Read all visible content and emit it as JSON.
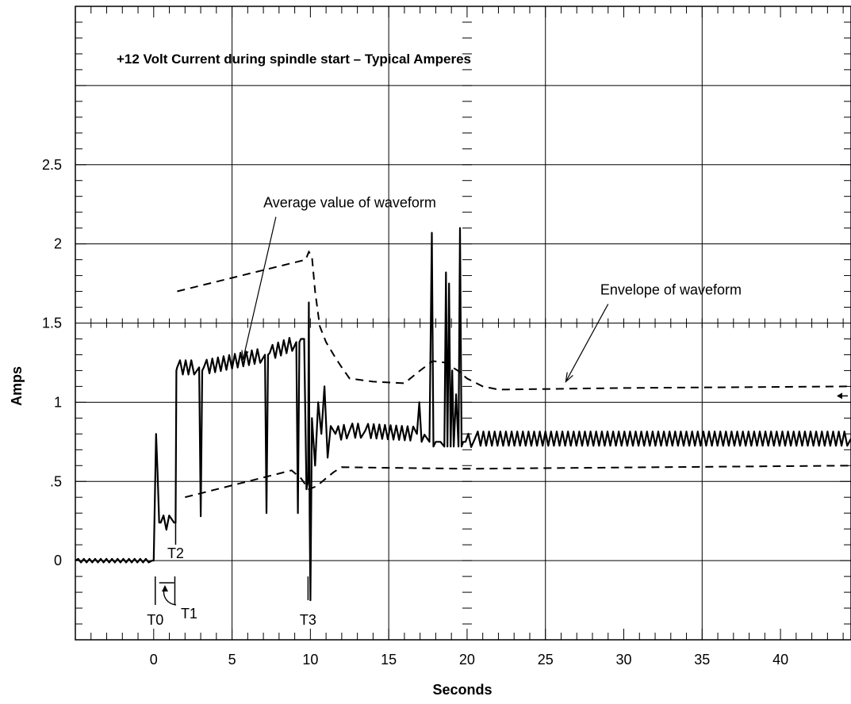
{
  "chart_data": {
    "type": "line",
    "title": "+12 Volt Current during spindle start – Typical Amperes",
    "xlabel": "Seconds",
    "ylabel": "Amps",
    "xlim": [
      -5,
      44.5
    ],
    "ylim": [
      -0.5,
      3.5
    ],
    "grid": true,
    "x_ticks": [
      {
        "value": 0,
        "label": "0"
      },
      {
        "value": 5,
        "label": "5"
      },
      {
        "value": 10,
        "label": "10"
      },
      {
        "value": 15,
        "label": "15"
      },
      {
        "value": 20,
        "label": "20"
      },
      {
        "value": 25,
        "label": "25"
      },
      {
        "value": 30,
        "label": "30"
      },
      {
        "value": 35,
        "label": "35"
      },
      {
        "value": 40,
        "label": "40"
      }
    ],
    "y_ticks": [
      {
        "value": 0,
        "label": "0"
      },
      {
        "value": 0.5,
        "label": ".5"
      },
      {
        "value": 1,
        "label": "1"
      },
      {
        "value": 1.5,
        "label": "1.5"
      },
      {
        "value": 2,
        "label": "2"
      },
      {
        "value": 2.5,
        "label": "2.5"
      }
    ],
    "series": [
      {
        "kind": "waveform",
        "style": "solid",
        "x": [
          -5,
          -0.1,
          0,
          0.15,
          0.25,
          0.35,
          0.45,
          1.3,
          1.4,
          1.45,
          1.5,
          2.9,
          3.0,
          3.1,
          3.2,
          7.1,
          7.2,
          7.3,
          7.4,
          9.1,
          9.2,
          9.3,
          9.4,
          9.6,
          9.75,
          9.85,
          9.9,
          9.95,
          10.0,
          10.1,
          10.3,
          10.5,
          10.7,
          10.9,
          11.1,
          11.3,
          11.6,
          12.5,
          13.5,
          16.8,
          16.95,
          17.1,
          17.6,
          17.75,
          17.85,
          18.0,
          18.3,
          18.55,
          18.65,
          18.75,
          18.85,
          18.95,
          19.05,
          19.15,
          19.3,
          19.45,
          19.55,
          19.65,
          19.75,
          19.9,
          20.5,
          44.5
        ],
        "y": [
          0,
          0,
          0,
          0.8,
          0.55,
          0.24,
          0.24,
          0.24,
          0.24,
          1.2,
          1.22,
          1.22,
          0.28,
          1.2,
          1.22,
          1.3,
          0.3,
          1.3,
          1.31,
          1.38,
          0.3,
          1.38,
          1.4,
          1.4,
          0.45,
          0.5,
          1.63,
          0.3,
          -0.25,
          0.9,
          0.6,
          1.0,
          0.8,
          1.1,
          0.65,
          0.85,
          0.8,
          0.82,
          0.82,
          0.8,
          1.0,
          0.75,
          0.75,
          2.07,
          0.72,
          0.75,
          0.75,
          0.72,
          1.82,
          0.72,
          1.75,
          0.72,
          1.2,
          0.72,
          1.05,
          0.72,
          2.1,
          0.72,
          0.75,
          0.75,
          0.77,
          0.77
        ]
      },
      {
        "kind": "average",
        "style": "dashed",
        "x": [
          1.5,
          9.7,
          9.9,
          10.1,
          10.3,
          10.6,
          11.0,
          11.6,
          12.0,
          12.5,
          14.0,
          16.0,
          17.0,
          17.8,
          18.6,
          19.4,
          20.0,
          21.0,
          22.0,
          30.0,
          44.5
        ],
        "y": [
          1.7,
          1.9,
          1.95,
          1.92,
          1.7,
          1.48,
          1.38,
          1.28,
          1.22,
          1.15,
          1.13,
          1.12,
          1.2,
          1.26,
          1.25,
          1.2,
          1.15,
          1.1,
          1.08,
          1.09,
          1.1
        ]
      },
      {
        "kind": "lower",
        "style": "dashed",
        "x": [
          2.0,
          8.8,
          9.4,
          9.9,
          10.4,
          11.0,
          11.5,
          12.0,
          20.0,
          44.5
        ],
        "y": [
          0.4,
          0.57,
          0.52,
          0.45,
          0.47,
          0.52,
          0.56,
          0.59,
          0.58,
          0.6
        ]
      }
    ],
    "annotations": [
      {
        "text": "Average value of waveform",
        "text_x": 7.0,
        "text_y": 2.23,
        "arrow_from": [
          7.8,
          2.17
        ],
        "arrow_to": [
          5.7,
          1.27
        ]
      },
      {
        "text": "Envelope of waveform",
        "text_x": 28.5,
        "text_y": 1.68,
        "arrow_from": [
          29.0,
          1.62
        ],
        "arrow_to": [
          26.3,
          1.13
        ]
      }
    ],
    "markers": [
      {
        "label": "T0",
        "x": 0.1,
        "line": [
          -0.1,
          -0.28
        ],
        "label_y": -0.37
      },
      {
        "label": "T1",
        "x": 1.35,
        "line": [
          -0.1,
          -0.28
        ],
        "label_y": -0.33
      },
      {
        "label": "T2",
        "x": 1.4,
        "line": [
          0.24,
          0.1
        ],
        "label_y": 0.05
      },
      {
        "label": "T3",
        "x": 9.85,
        "line": [
          -0.1,
          -0.25
        ],
        "label_y": -0.37
      }
    ]
  }
}
